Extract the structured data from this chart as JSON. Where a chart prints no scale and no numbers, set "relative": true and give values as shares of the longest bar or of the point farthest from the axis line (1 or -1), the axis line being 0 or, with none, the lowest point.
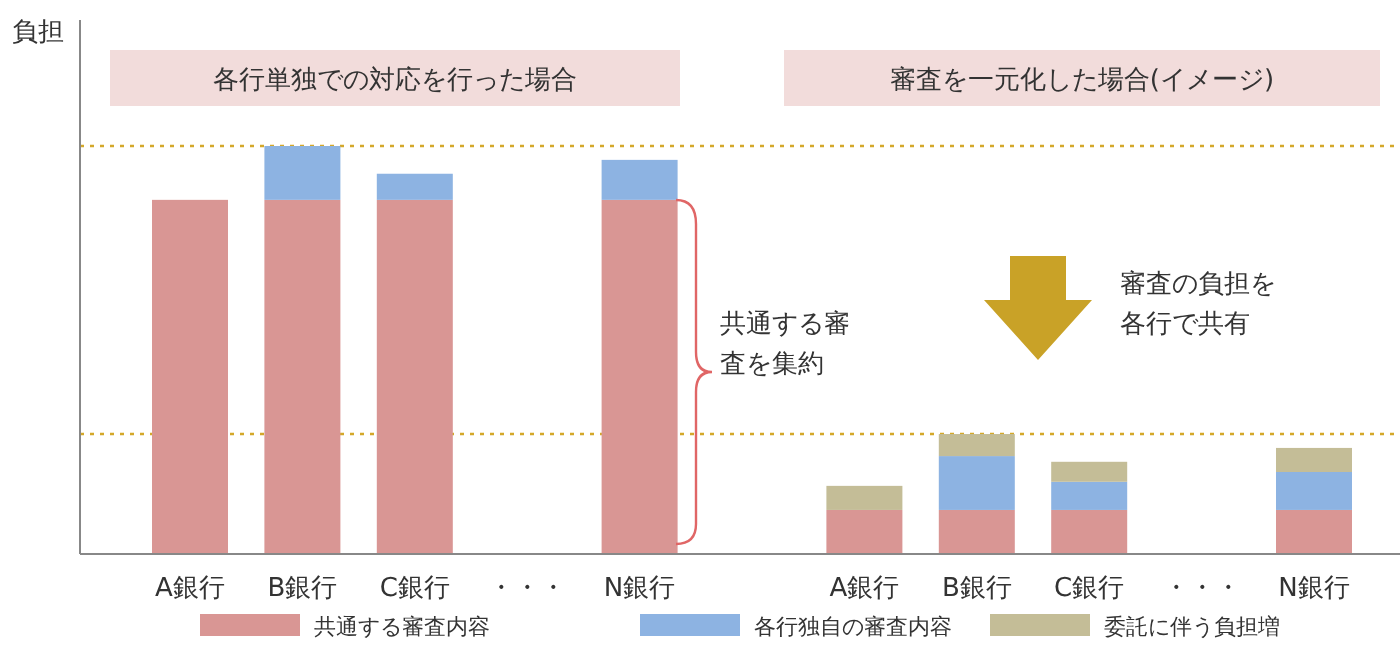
{
  "chart_data": {
    "type": "bar",
    "stacked": true,
    "relative": true,
    "ylabel": "負担",
    "legend": "bottom",
    "categories": [
      "A銀行",
      "B銀行",
      "C銀行",
      "・・・",
      "N銀行",
      null,
      "A銀行",
      "B銀行",
      "C銀行",
      "・・・",
      "N銀行"
    ],
    "series": [
      {
        "name": "共通する審査内容",
        "color": "#d99694",
        "values": [
          0.868,
          0.868,
          0.868,
          null,
          0.868,
          null,
          0.108,
          0.108,
          0.108,
          null,
          0.108
        ]
      },
      {
        "name": "各行独自の審査内容",
        "color": "#8db3e2",
        "values": [
          null,
          0.132,
          0.064,
          null,
          0.098,
          null,
          null,
          0.132,
          0.069,
          null,
          0.093
        ]
      },
      {
        "name": "委託に伴う負担増",
        "color": "#c4bd97",
        "values": [
          null,
          null,
          null,
          null,
          null,
          null,
          0.059,
          0.054,
          0.049,
          null,
          0.059
        ]
      }
    ],
    "ref_lines": [
      {
        "axis": "y",
        "value": 1,
        "color": "#d4a82a",
        "line_style": "dotted"
      },
      {
        "axis": "y",
        "value": 0.294,
        "color": "#d4a82a",
        "line_style": "dotted"
      }
    ],
    "annotations": [
      "各行単独での対応を行った場合",
      "審査を一元化した場合(イメージ)",
      "共通する審査を集約",
      "審査の負担を各行で共有"
    ]
  }
}
